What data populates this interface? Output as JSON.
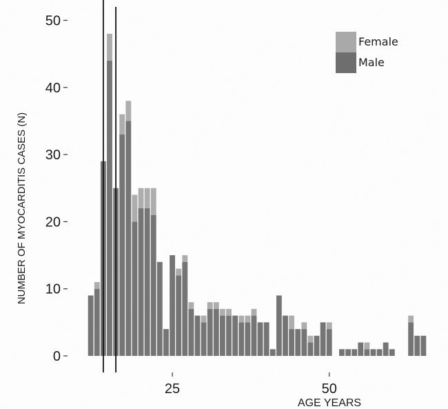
{
  "chart_data": {
    "type": "bar",
    "stacked": true,
    "xlabel": "AGE YEARS",
    "ylabel": "NUMBER OF MYOCARDITIS CASES (N)",
    "xlim": [
      10.5,
      66.5
    ],
    "ylim": [
      0,
      52
    ],
    "x_ticks": [
      25,
      50
    ],
    "y_ticks": [
      0,
      10,
      20,
      30,
      40,
      50
    ],
    "grid": false,
    "legend": {
      "position": "top-right",
      "entries": [
        "Female",
        "Male"
      ]
    },
    "colors": {
      "Female": "#a9a9a9",
      "Male": "#6e6e6e",
      "marker_lines": "#111111"
    },
    "marker_lines_at_age": [
      14,
      16
    ],
    "x": [
      12,
      13,
      14,
      15,
      16,
      17,
      18,
      19,
      20,
      21,
      22,
      23,
      24,
      25,
      26,
      27,
      28,
      29,
      30,
      31,
      32,
      33,
      34,
      35,
      36,
      37,
      38,
      39,
      40,
      41,
      42,
      43,
      44,
      45,
      46,
      47,
      48,
      49,
      50,
      51,
      52,
      53,
      54,
      55,
      56,
      57,
      58,
      59,
      60,
      61,
      62,
      63,
      64,
      65
    ],
    "series": [
      {
        "name": "Female",
        "values": [
          0,
          1,
          0,
          4,
          0,
          3,
          3,
          4,
          3,
          3,
          4,
          0,
          0,
          0,
          1,
          1,
          1,
          0,
          1,
          1,
          1,
          1,
          1,
          0,
          1,
          1,
          1,
          0,
          0,
          0,
          0,
          0,
          2,
          0,
          1,
          1,
          0,
          0,
          1,
          0,
          0,
          0,
          0,
          0,
          1,
          0,
          0,
          0,
          0,
          0,
          0,
          1,
          0,
          0
        ]
      },
      {
        "name": "Male",
        "values": [
          9,
          10,
          29,
          44,
          25,
          33,
          35,
          20,
          22,
          22,
          21,
          14,
          4,
          15,
          12,
          14,
          7,
          6,
          5,
          7,
          7,
          6,
          6,
          6,
          5,
          5,
          6,
          5,
          5,
          1,
          9,
          6,
          4,
          4,
          4,
          2,
          3,
          5,
          4,
          0,
          1,
          1,
          1,
          2,
          1,
          1,
          1,
          2,
          1,
          0,
          0,
          5,
          3,
          3
        ]
      }
    ]
  }
}
